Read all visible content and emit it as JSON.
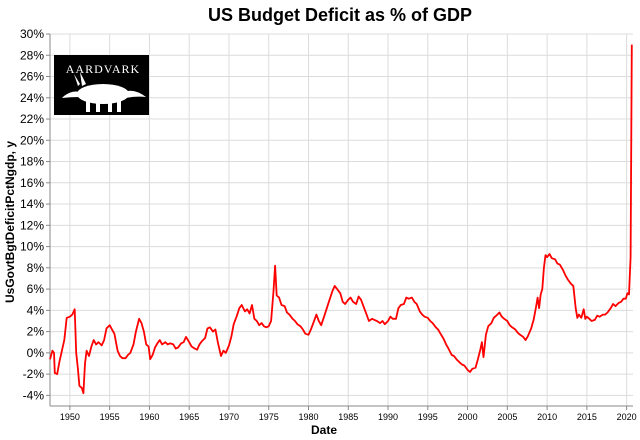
{
  "chart_data": {
    "type": "line",
    "title": "US Budget Deficit as % of GDP",
    "xlabel": "Date",
    "ylabel": "UsGovtBgtDeficitPctNgdp, y",
    "xlim": [
      1947.5,
      2020.8
    ],
    "ylim": [
      -5,
      30
    ],
    "x_ticks": [
      1950,
      1955,
      1960,
      1965,
      1970,
      1975,
      1980,
      1985,
      1990,
      1995,
      2000,
      2005,
      2010,
      2015,
      2020
    ],
    "y_ticks": [
      -4,
      -2,
      0,
      2,
      4,
      6,
      8,
      10,
      12,
      14,
      16,
      18,
      20,
      22,
      24,
      26,
      28,
      30
    ],
    "y_tick_suffix": "%",
    "grid": true,
    "line_color": "#ff0000",
    "series": [
      {
        "points": [
          [
            1947.5,
            -0.6
          ],
          [
            1947.8,
            0.2
          ],
          [
            1948.0,
            0.0
          ],
          [
            1948.1,
            -1.9
          ],
          [
            1948.4,
            -2.0
          ],
          [
            1948.7,
            -0.8
          ],
          [
            1949.0,
            0.2
          ],
          [
            1949.3,
            1.2
          ],
          [
            1949.6,
            3.3
          ],
          [
            1950.0,
            3.4
          ],
          [
            1950.3,
            3.6
          ],
          [
            1950.6,
            4.1
          ],
          [
            1950.8,
            0.0
          ],
          [
            1951.0,
            -1.4
          ],
          [
            1951.2,
            -3.1
          ],
          [
            1951.5,
            -3.3
          ],
          [
            1951.7,
            -3.8
          ],
          [
            1951.9,
            -1.0
          ],
          [
            1952.1,
            0.2
          ],
          [
            1952.4,
            -0.3
          ],
          [
            1952.7,
            0.6
          ],
          [
            1953.0,
            1.2
          ],
          [
            1953.3,
            0.8
          ],
          [
            1953.6,
            1.0
          ],
          [
            1954.0,
            0.7
          ],
          [
            1954.3,
            1.2
          ],
          [
            1954.6,
            2.3
          ],
          [
            1955.0,
            2.6
          ],
          [
            1955.3,
            2.2
          ],
          [
            1955.6,
            1.8
          ],
          [
            1956.0,
            0.2
          ],
          [
            1956.3,
            -0.3
          ],
          [
            1956.6,
            -0.5
          ],
          [
            1957.0,
            -0.5
          ],
          [
            1957.3,
            -0.2
          ],
          [
            1957.6,
            0.0
          ],
          [
            1958.0,
            0.8
          ],
          [
            1958.3,
            2.0
          ],
          [
            1958.7,
            3.2
          ],
          [
            1959.0,
            2.8
          ],
          [
            1959.3,
            2.0
          ],
          [
            1959.6,
            0.8
          ],
          [
            1959.9,
            0.6
          ],
          [
            1960.1,
            -0.6
          ],
          [
            1960.4,
            -0.2
          ],
          [
            1960.7,
            0.5
          ],
          [
            1961.0,
            0.9
          ],
          [
            1961.3,
            1.2
          ],
          [
            1961.6,
            0.8
          ],
          [
            1962.0,
            1.0
          ],
          [
            1962.3,
            0.8
          ],
          [
            1962.6,
            0.9
          ],
          [
            1963.0,
            0.8
          ],
          [
            1963.3,
            0.4
          ],
          [
            1963.6,
            0.5
          ],
          [
            1964.0,
            0.9
          ],
          [
            1964.3,
            1.0
          ],
          [
            1964.6,
            1.5
          ],
          [
            1965.0,
            1.0
          ],
          [
            1965.3,
            0.6
          ],
          [
            1965.7,
            0.4
          ],
          [
            1966.0,
            0.3
          ],
          [
            1966.3,
            0.8
          ],
          [
            1966.6,
            1.1
          ],
          [
            1967.0,
            1.4
          ],
          [
            1967.3,
            2.3
          ],
          [
            1967.6,
            2.4
          ],
          [
            1968.0,
            2.0
          ],
          [
            1968.3,
            2.2
          ],
          [
            1968.6,
            1.0
          ],
          [
            1969.0,
            -0.3
          ],
          [
            1969.3,
            0.2
          ],
          [
            1969.6,
            0.0
          ],
          [
            1970.0,
            0.7
          ],
          [
            1970.3,
            1.5
          ],
          [
            1970.6,
            2.7
          ],
          [
            1971.0,
            3.5
          ],
          [
            1971.3,
            4.2
          ],
          [
            1971.6,
            4.5
          ],
          [
            1972.0,
            3.9
          ],
          [
            1972.3,
            4.1
          ],
          [
            1972.6,
            3.7
          ],
          [
            1972.9,
            4.5
          ],
          [
            1973.2,
            3.2
          ],
          [
            1973.5,
            3.0
          ],
          [
            1973.8,
            2.6
          ],
          [
            1974.1,
            2.8
          ],
          [
            1974.4,
            2.5
          ],
          [
            1974.7,
            2.4
          ],
          [
            1975.0,
            2.5
          ],
          [
            1975.3,
            3.0
          ],
          [
            1975.6,
            5.8
          ],
          [
            1975.8,
            8.2
          ],
          [
            1976.0,
            5.4
          ],
          [
            1976.3,
            5.2
          ],
          [
            1976.6,
            4.5
          ],
          [
            1977.0,
            4.4
          ],
          [
            1977.3,
            3.8
          ],
          [
            1977.6,
            3.6
          ],
          [
            1978.0,
            3.2
          ],
          [
            1978.3,
            3.0
          ],
          [
            1978.6,
            2.7
          ],
          [
            1979.0,
            2.5
          ],
          [
            1979.3,
            2.2
          ],
          [
            1979.6,
            1.8
          ],
          [
            1980.0,
            1.7
          ],
          [
            1980.3,
            2.2
          ],
          [
            1980.6,
            2.8
          ],
          [
            1981.0,
            3.6
          ],
          [
            1981.3,
            3.0
          ],
          [
            1981.6,
            2.6
          ],
          [
            1982.0,
            3.5
          ],
          [
            1982.3,
            4.2
          ],
          [
            1982.6,
            4.9
          ],
          [
            1983.0,
            5.8
          ],
          [
            1983.3,
            6.3
          ],
          [
            1983.6,
            6.0
          ],
          [
            1984.0,
            5.6
          ],
          [
            1984.3,
            4.8
          ],
          [
            1984.6,
            4.6
          ],
          [
            1985.0,
            5.0
          ],
          [
            1985.3,
            5.2
          ],
          [
            1985.6,
            4.8
          ],
          [
            1986.0,
            4.6
          ],
          [
            1986.3,
            5.3
          ],
          [
            1986.6,
            5.0
          ],
          [
            1987.0,
            4.2
          ],
          [
            1987.3,
            3.6
          ],
          [
            1987.6,
            3.0
          ],
          [
            1988.0,
            3.2
          ],
          [
            1988.3,
            3.1
          ],
          [
            1988.6,
            3.0
          ],
          [
            1989.0,
            2.8
          ],
          [
            1989.3,
            3.0
          ],
          [
            1989.6,
            2.7
          ],
          [
            1990.0,
            3.0
          ],
          [
            1990.3,
            3.4
          ],
          [
            1990.6,
            3.2
          ],
          [
            1991.0,
            3.2
          ],
          [
            1991.3,
            4.2
          ],
          [
            1991.6,
            4.5
          ],
          [
            1992.0,
            4.6
          ],
          [
            1992.3,
            5.2
          ],
          [
            1992.6,
            5.1
          ],
          [
            1993.0,
            5.2
          ],
          [
            1993.3,
            4.8
          ],
          [
            1993.6,
            4.6
          ],
          [
            1994.0,
            3.9
          ],
          [
            1994.3,
            3.6
          ],
          [
            1994.6,
            3.4
          ],
          [
            1995.0,
            3.3
          ],
          [
            1995.3,
            3.0
          ],
          [
            1995.6,
            2.8
          ],
          [
            1996.0,
            2.4
          ],
          [
            1996.3,
            2.2
          ],
          [
            1996.6,
            1.8
          ],
          [
            1997.0,
            1.3
          ],
          [
            1997.3,
            0.8
          ],
          [
            1997.6,
            0.4
          ],
          [
            1998.0,
            -0.2
          ],
          [
            1998.3,
            -0.3
          ],
          [
            1998.6,
            -0.6
          ],
          [
            1999.0,
            -0.9
          ],
          [
            1999.3,
            -1.1
          ],
          [
            1999.6,
            -1.2
          ],
          [
            2000.0,
            -1.6
          ],
          [
            2000.3,
            -1.8
          ],
          [
            2000.6,
            -1.5
          ],
          [
            2001.0,
            -1.4
          ],
          [
            2001.3,
            -0.6
          ],
          [
            2001.6,
            0.3
          ],
          [
            2001.8,
            1.0
          ],
          [
            2002.0,
            -0.4
          ],
          [
            2002.3,
            1.7
          ],
          [
            2002.6,
            2.5
          ],
          [
            2003.0,
            2.8
          ],
          [
            2003.3,
            3.3
          ],
          [
            2003.6,
            3.5
          ],
          [
            2004.0,
            3.8
          ],
          [
            2004.3,
            3.4
          ],
          [
            2004.6,
            3.2
          ],
          [
            2005.0,
            3.0
          ],
          [
            2005.3,
            2.6
          ],
          [
            2005.6,
            2.4
          ],
          [
            2006.0,
            2.2
          ],
          [
            2006.3,
            1.9
          ],
          [
            2006.6,
            1.7
          ],
          [
            2007.0,
            1.5
          ],
          [
            2007.3,
            1.2
          ],
          [
            2007.6,
            1.6
          ],
          [
            2008.0,
            2.3
          ],
          [
            2008.3,
            3.1
          ],
          [
            2008.6,
            4.3
          ],
          [
            2008.8,
            5.2
          ],
          [
            2009.0,
            4.2
          ],
          [
            2009.2,
            5.5
          ],
          [
            2009.4,
            6.0
          ],
          [
            2009.6,
            8.0
          ],
          [
            2009.8,
            9.2
          ],
          [
            2010.0,
            9.0
          ],
          [
            2010.3,
            9.3
          ],
          [
            2010.6,
            8.9
          ],
          [
            2011.0,
            8.8
          ],
          [
            2011.3,
            8.4
          ],
          [
            2011.6,
            8.3
          ],
          [
            2012.0,
            7.8
          ],
          [
            2012.3,
            7.3
          ],
          [
            2012.6,
            6.9
          ],
          [
            2013.0,
            6.5
          ],
          [
            2013.3,
            6.3
          ],
          [
            2013.6,
            4.2
          ],
          [
            2013.8,
            3.3
          ],
          [
            2014.0,
            3.6
          ],
          [
            2014.3,
            3.3
          ],
          [
            2014.6,
            4.1
          ],
          [
            2014.8,
            3.2
          ],
          [
            2015.0,
            3.4
          ],
          [
            2015.3,
            3.2
          ],
          [
            2015.6,
            3.0
          ],
          [
            2016.0,
            3.1
          ],
          [
            2016.3,
            3.5
          ],
          [
            2016.6,
            3.4
          ],
          [
            2017.0,
            3.6
          ],
          [
            2017.3,
            3.6
          ],
          [
            2017.6,
            3.8
          ],
          [
            2018.0,
            4.2
          ],
          [
            2018.3,
            4.6
          ],
          [
            2018.6,
            4.4
          ],
          [
            2019.0,
            4.7
          ],
          [
            2019.3,
            4.8
          ],
          [
            2019.6,
            5.1
          ],
          [
            2019.9,
            5.1
          ],
          [
            2020.1,
            5.6
          ],
          [
            2020.3,
            5.5
          ],
          [
            2020.5,
            9.0
          ],
          [
            2020.65,
            29.0
          ]
        ]
      }
    ]
  },
  "logo": {
    "text": "AARDVARK"
  }
}
